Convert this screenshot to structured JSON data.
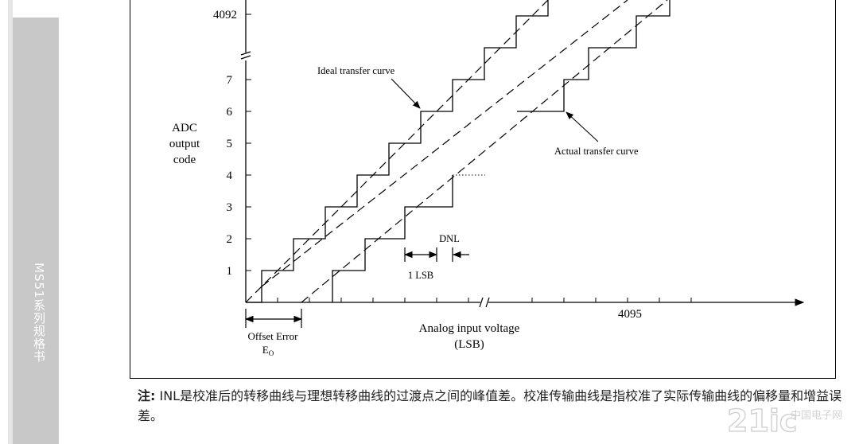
{
  "sidebar": {
    "title": "MS51系列规格书"
  },
  "diagram": {
    "y_axis_label": [
      "ADC",
      "output",
      "code"
    ],
    "y_ticks": [
      "1",
      "2",
      "3",
      "4",
      "5",
      "6",
      "7"
    ],
    "y_top_tick": "4092",
    "x_axis_label_line1": "Analog input voltage",
    "x_axis_label_line2": "(LSB)",
    "x_end_tick": "4095",
    "ideal_label": "Ideal transfer curve",
    "actual_label": "Actual transfer curve",
    "dnl_label": "DNL",
    "lsb_label": "1 LSB",
    "offset_label": "Offset Error",
    "offset_symbol": "E",
    "offset_subscript": "O"
  },
  "note": {
    "prefix": "注:",
    "text": " INL是校准后的转移曲线与理想转移曲线的过渡点之间的峰值差。校准传输曲线是指校准了实际传输曲线的偏移量和增益误差。"
  },
  "watermark": {
    "text": "21ic",
    "sub": "中国电子网"
  }
}
